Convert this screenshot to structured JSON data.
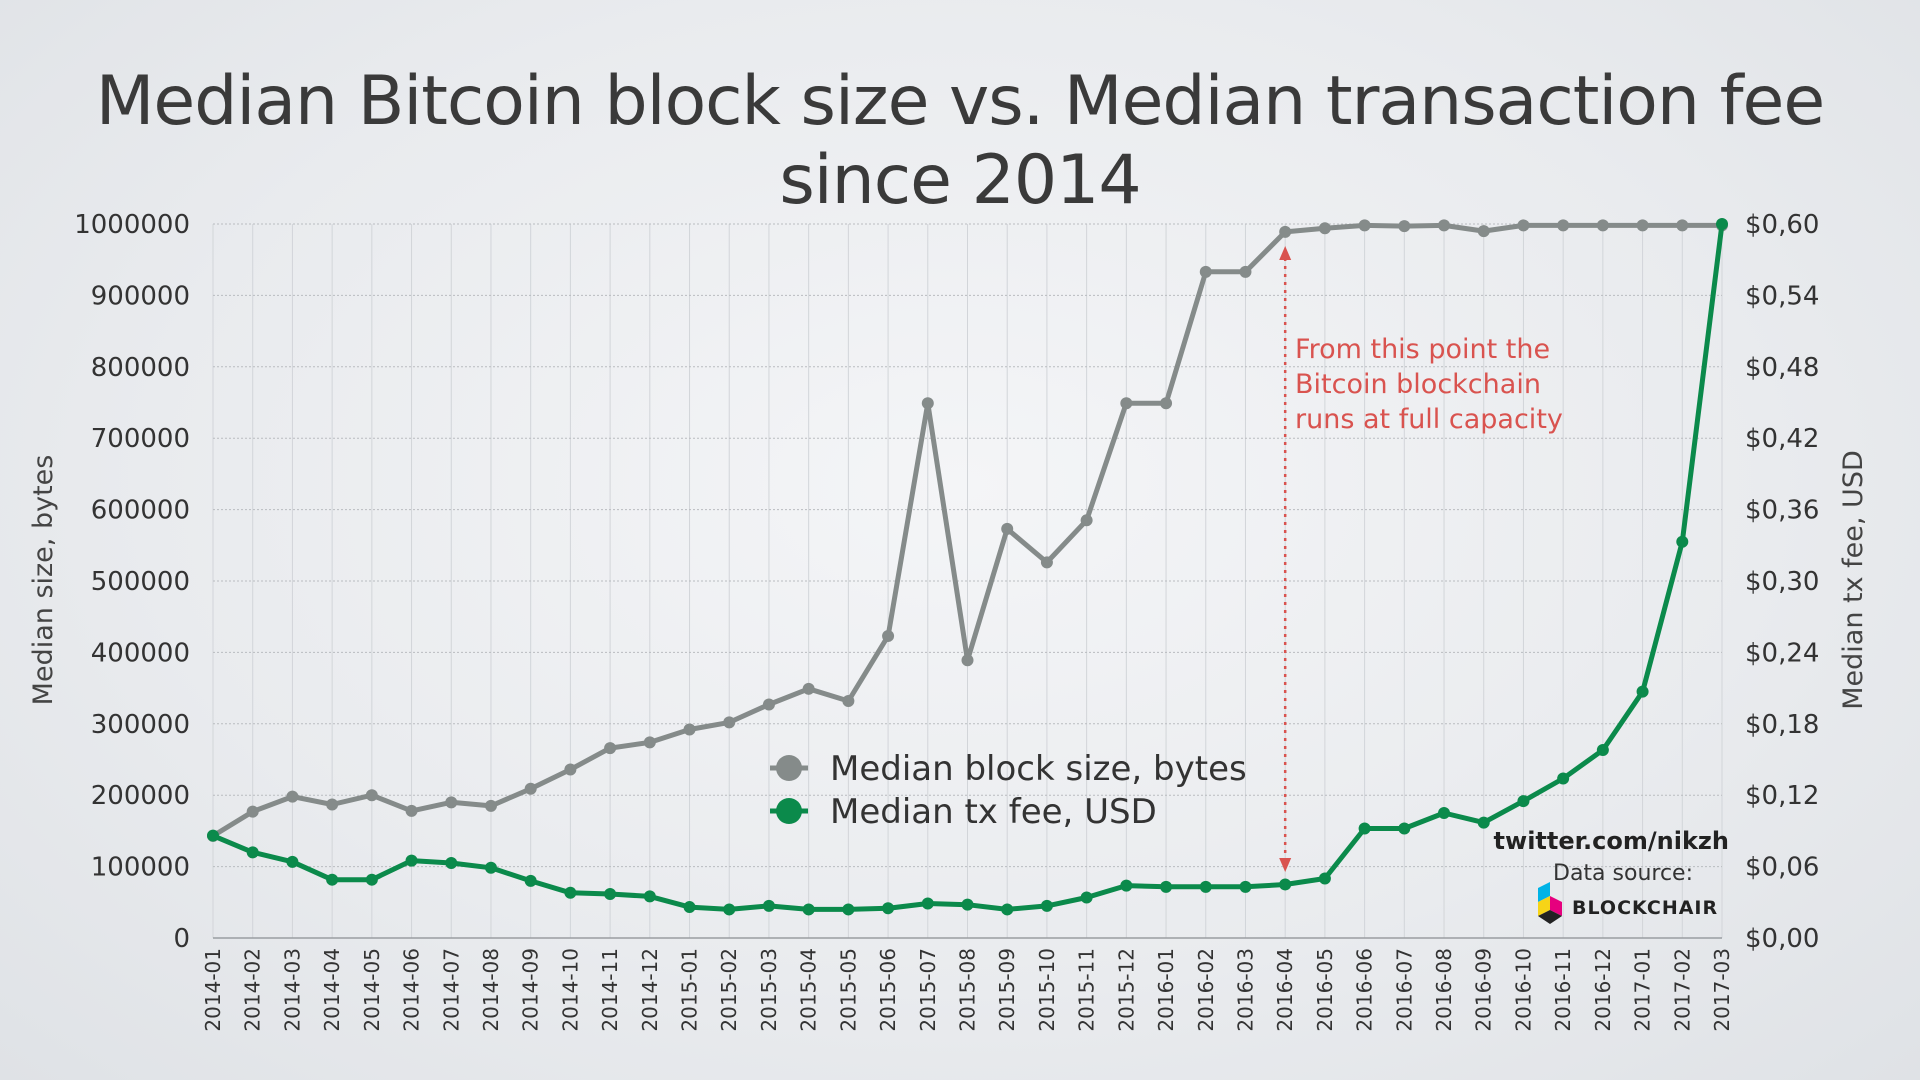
{
  "chart_data": {
    "type": "line",
    "title": "Median Bitcoin block size vs. Median transaction fee since 2014",
    "categories": [
      "2014-01",
      "2014-02",
      "2014-03",
      "2014-04",
      "2014-05",
      "2014-06",
      "2014-07",
      "2014-08",
      "2014-09",
      "2014-10",
      "2014-11",
      "2014-12",
      "2015-01",
      "2015-02",
      "2015-03",
      "2015-04",
      "2015-05",
      "2015-06",
      "2015-07",
      "2015-08",
      "2015-09",
      "2015-10",
      "2015-11",
      "2015-12",
      "2016-01",
      "2016-02",
      "2016-03",
      "2016-04",
      "2016-05",
      "2016-06",
      "2016-07",
      "2016-08",
      "2016-09",
      "2016-10",
      "2016-11",
      "2016-12",
      "2017-01",
      "2017-02",
      "2017-03"
    ],
    "series": [
      {
        "name": "Median block size, bytes",
        "axis": "left",
        "color": "#858b8a",
        "values": [
          143000,
          177000,
          198000,
          187000,
          200000,
          178000,
          190000,
          185000,
          209000,
          236000,
          266000,
          274000,
          292000,
          302000,
          327000,
          349000,
          332000,
          423000,
          749000,
          389000,
          573000,
          526000,
          585000,
          749000,
          749000,
          933000,
          933000,
          989000,
          994000,
          998000,
          997000,
          998000,
          990000,
          998000,
          998000,
          998000,
          998000,
          998000,
          998000
        ]
      },
      {
        "name": "Median tx fee, USD",
        "axis": "right",
        "color": "#0b8a4b",
        "values": [
          0.086,
          0.072,
          0.064,
          0.049,
          0.049,
          0.065,
          0.063,
          0.059,
          0.048,
          0.038,
          0.037,
          0.035,
          0.026,
          0.024,
          0.027,
          0.024,
          0.024,
          0.025,
          0.029,
          0.028,
          0.024,
          0.027,
          0.034,
          0.044,
          0.043,
          0.043,
          0.043,
          0.045,
          0.05,
          0.092,
          0.092,
          0.105,
          0.097,
          0.115,
          0.134,
          0.158,
          0.207,
          0.333,
          0.6
        ]
      }
    ],
    "ylabel_left": "Median size, bytes",
    "ylabel_right": "Median tx fee, USD",
    "ylim_left": [
      0,
      1000000
    ],
    "ylim_right": [
      0,
      0.6
    ],
    "yticks_left": [
      "0",
      "100000",
      "200000",
      "300000",
      "400000",
      "500000",
      "600000",
      "700000",
      "800000",
      "900000",
      "1000000"
    ],
    "yticks_right": [
      "$0,00",
      "$0,06",
      "$0,12",
      "$0,18",
      "$0,24",
      "$0,30",
      "$0,36",
      "$0,42",
      "$0,48",
      "$0,54",
      "$0,60"
    ],
    "grid": true,
    "legend_position": "center-bottom",
    "annotation": {
      "category": "2016-04",
      "lines": [
        "From this point the",
        "Bitcoin blockchain",
        "runs at full capacity"
      ],
      "color": "#d9534f"
    }
  },
  "credit": {
    "handle": "twitter.com/nikzh",
    "data_source_label": "Data source:",
    "brand": "BLOCKCHAIR"
  }
}
